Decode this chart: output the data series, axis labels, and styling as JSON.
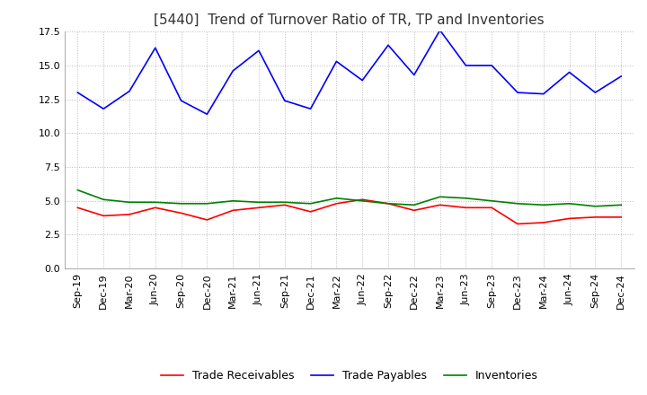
{
  "title": "[5440]  Trend of Turnover Ratio of TR, TP and Inventories",
  "x_labels": [
    "Sep-19",
    "Dec-19",
    "Mar-20",
    "Jun-20",
    "Sep-20",
    "Dec-20",
    "Mar-21",
    "Jun-21",
    "Sep-21",
    "Dec-21",
    "Mar-22",
    "Jun-22",
    "Sep-22",
    "Dec-22",
    "Mar-23",
    "Jun-23",
    "Sep-23",
    "Dec-23",
    "Mar-24",
    "Jun-24",
    "Sep-24",
    "Dec-24"
  ],
  "trade_receivables": [
    4.5,
    3.9,
    4.0,
    4.5,
    4.1,
    3.6,
    4.3,
    4.5,
    4.7,
    4.2,
    4.8,
    5.1,
    4.8,
    4.3,
    4.7,
    4.5,
    4.5,
    3.3,
    3.4,
    3.7,
    3.8,
    3.8
  ],
  "trade_payables": [
    13.0,
    11.8,
    13.1,
    16.3,
    12.4,
    11.4,
    14.6,
    16.1,
    12.4,
    11.8,
    15.3,
    13.9,
    16.5,
    14.3,
    17.6,
    15.0,
    15.0,
    13.0,
    12.9,
    14.5,
    13.0,
    14.2
  ],
  "inventories": [
    5.8,
    5.1,
    4.9,
    4.9,
    4.8,
    4.8,
    5.0,
    4.9,
    4.9,
    4.8,
    5.2,
    5.0,
    4.8,
    4.7,
    5.3,
    5.2,
    5.0,
    4.8,
    4.7,
    4.8,
    4.6,
    4.7
  ],
  "ylim": [
    0.0,
    17.5
  ],
  "yticks": [
    0.0,
    2.5,
    5.0,
    7.5,
    10.0,
    12.5,
    15.0,
    17.5
  ],
  "tr_color": "#ff0000",
  "tp_color": "#0000ff",
  "inv_color": "#008000",
  "background_color": "#ffffff",
  "grid_color": "#bbbbbb",
  "title_fontsize": 11,
  "legend_fontsize": 9,
  "tick_fontsize": 8
}
